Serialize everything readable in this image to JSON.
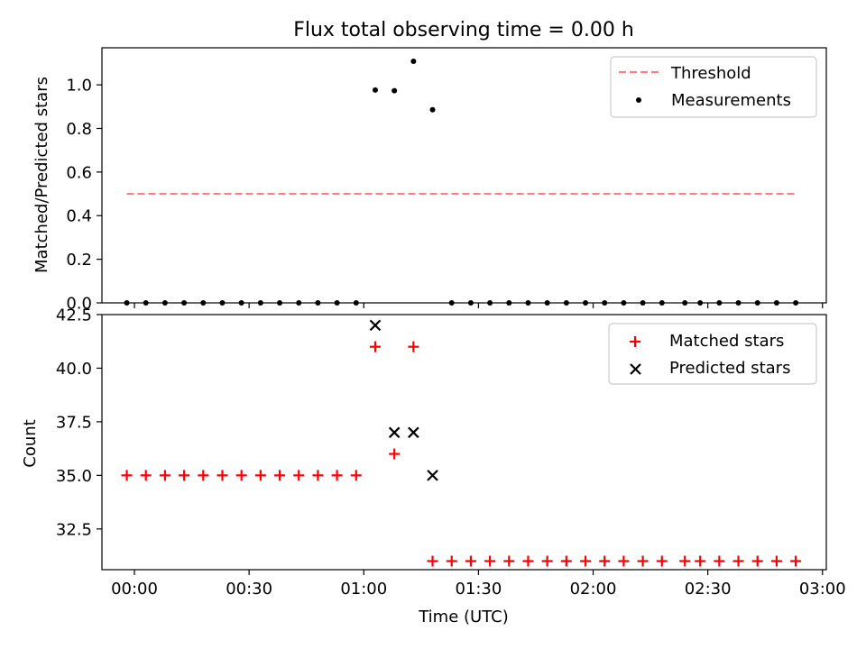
{
  "chart_data": {
    "title": "Flux total observing time = 0.00 h",
    "xlabel": "Time (UTC)",
    "xlim_minutes": [
      -8.5,
      181
    ],
    "xticks": [
      {
        "minutes": 0,
        "label": "00:00"
      },
      {
        "minutes": 30,
        "label": "00:30"
      },
      {
        "minutes": 60,
        "label": "01:00"
      },
      {
        "minutes": 90,
        "label": "01:30"
      },
      {
        "minutes": 120,
        "label": "02:00"
      },
      {
        "minutes": 150,
        "label": "02:30"
      },
      {
        "minutes": 180,
        "label": "03:00"
      }
    ],
    "top_panel": {
      "type": "scatter",
      "ylabel": "Matched/Predicted stars",
      "ylim": [
        0,
        1.17
      ],
      "yticks": [
        0.0,
        0.2,
        0.4,
        0.6,
        0.8,
        1.0
      ],
      "ytick_labels": [
        "0.0",
        "0.2",
        "0.4",
        "0.6",
        "0.8",
        "1.0"
      ],
      "threshold": {
        "name": "Threshold",
        "value": 0.5,
        "x_range": [
          -2,
          173
        ],
        "color": "#ff7f7f"
      },
      "measurements": {
        "name": "Measurements",
        "color": "#000000",
        "x": [
          -2,
          3,
          8,
          13,
          18,
          23,
          28,
          33,
          38,
          43,
          48,
          53,
          58,
          63,
          68,
          73,
          78,
          83,
          88,
          93,
          98,
          103,
          108,
          113,
          118,
          123,
          128,
          133,
          138,
          144,
          148,
          153,
          158,
          163,
          168,
          173
        ],
        "y": [
          0,
          0,
          0,
          0,
          0,
          0,
          0,
          0,
          0,
          0,
          0,
          0,
          0,
          0.976,
          0.973,
          1.108,
          0.886,
          0,
          0,
          0,
          0,
          0,
          0,
          0,
          0,
          0,
          0,
          0,
          0,
          0,
          0,
          0,
          0,
          0,
          0,
          0
        ]
      },
      "legend_position": "top-right"
    },
    "bottom_panel": {
      "type": "scatter",
      "ylabel": "Count",
      "ylim": [
        30.6,
        42.5
      ],
      "yticks": [
        32.5,
        35.0,
        37.5,
        40.0,
        42.5
      ],
      "ytick_labels": [
        "32.5",
        "35.0",
        "37.5",
        "40.0",
        "42.5"
      ],
      "series": [
        {
          "name": "Matched stars",
          "marker": "+",
          "color": "#ff0000",
          "x": [
            -2,
            3,
            8,
            13,
            18,
            23,
            28,
            33,
            38,
            43,
            48,
            53,
            58,
            63,
            68,
            73,
            78,
            83,
            88,
            93,
            98,
            103,
            108,
            113,
            118,
            123,
            128,
            133,
            138,
            144,
            148,
            153,
            158,
            163,
            168,
            173
          ],
          "y": [
            35,
            35,
            35,
            35,
            35,
            35,
            35,
            35,
            35,
            35,
            35,
            35,
            35,
            41,
            36,
            41,
            31,
            31,
            31,
            31,
            31,
            31,
            31,
            31,
            31,
            31,
            31,
            31,
            31,
            31,
            31,
            31,
            31,
            31,
            31,
            31
          ]
        },
        {
          "name": "Predicted stars",
          "marker": "x",
          "color": "#000000",
          "x": [
            63,
            68,
            73,
            78
          ],
          "y": [
            42,
            37,
            37,
            35
          ]
        }
      ],
      "legend_position": "top-right"
    }
  }
}
